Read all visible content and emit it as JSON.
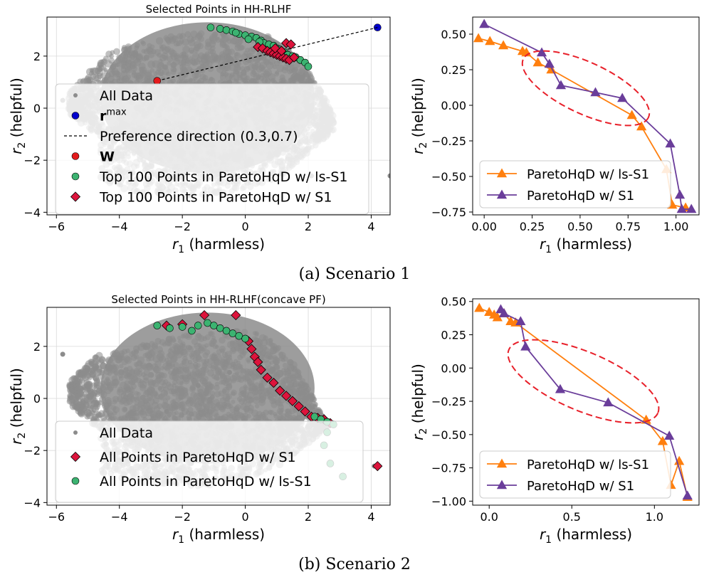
{
  "colors": {
    "gray_data": "#8c8c8c",
    "gray_edge": "#b0b0b0",
    "orange": "#ff7f0e",
    "purple": "#6a3d9a",
    "green": "#3cb371",
    "crimson": "#dc143c",
    "blue": "#0000cd",
    "red": "#e31a1c",
    "ellipse": "#e8202a"
  },
  "captions": [
    "(a) Scenario 1",
    "(b) Scenario 2"
  ],
  "chart_data": [
    {
      "id": "scatter1",
      "type": "scatter",
      "title": "Selected Points in HH-RLHF",
      "xlabel_sym": "r",
      "xlabel_sub": "1",
      "xlabel_rest": " (harmless)",
      "ylabel_sym": "r",
      "ylabel_sub": "2",
      "ylabel_rest": " (helpful)",
      "xlim": [
        -6.3,
        4.6
      ],
      "ylim": [
        -4.1,
        3.5
      ],
      "xticks": [
        -6,
        -4,
        -2,
        0,
        2,
        4
      ],
      "yticks": [
        -4,
        -2,
        0,
        2
      ],
      "grid": true,
      "background_cloud": {
        "label": "All Data",
        "center": [
          -1.4,
          0.5
        ],
        "extent": "approx. x -5.8 to 3, y -3.5 to 3"
      },
      "series": [
        {
          "name": "All Data",
          "marker": "circle-small",
          "color": "gray_data",
          "points": [
            [
              -1.5,
              0.5
            ],
            [
              -0.5,
              1
            ],
            [
              0.5,
              0.5
            ],
            [
              -2.5,
              -0.5
            ],
            [
              1.5,
              -1
            ],
            [
              2.1,
              -2.6
            ],
            [
              4.6,
              -2.6
            ],
            [
              -5.8,
              0.3
            ]
          ]
        },
        {
          "name": "r^max",
          "marker": "circle",
          "color": "blue",
          "points": [
            [
              4.2,
              3.1
            ]
          ]
        },
        {
          "name": "Preference direction (0.3,0.7)",
          "marker": "dashed-line",
          "color": "#000000",
          "points": [
            [
              -2.8,
              1.05
            ],
            [
              4.2,
              3.1
            ]
          ]
        },
        {
          "name": "W",
          "marker": "circle",
          "color": "red",
          "points": [
            [
              -2.8,
              1.05
            ]
          ]
        },
        {
          "name": "Top 100 Points in ParetoHqD w/ ls-S1",
          "marker": "circle",
          "color": "green",
          "points": [
            [
              -1.1,
              3.1
            ],
            [
              -0.8,
              3.05
            ],
            [
              -0.6,
              3.0
            ],
            [
              -0.4,
              2.95
            ],
            [
              -0.2,
              2.85
            ],
            [
              0.0,
              2.8
            ],
            [
              0.2,
              2.75
            ],
            [
              0.35,
              2.7
            ],
            [
              0.5,
              2.6
            ],
            [
              0.6,
              2.5
            ],
            [
              0.75,
              2.45
            ],
            [
              0.9,
              2.4
            ],
            [
              1.0,
              2.3
            ],
            [
              1.1,
              2.25
            ],
            [
              1.25,
              2.15
            ],
            [
              1.35,
              2.05
            ],
            [
              1.5,
              2.0
            ],
            [
              1.6,
              1.95
            ],
            [
              1.75,
              1.85
            ],
            [
              1.9,
              1.75
            ],
            [
              2.0,
              1.6
            ],
            [
              0.1,
              2.65
            ],
            [
              0.45,
              2.55
            ],
            [
              -0.3,
              2.9
            ]
          ]
        },
        {
          "name": "Top 100 Points in ParetoHqD w/ S1",
          "marker": "diamond",
          "color": "crimson",
          "points": [
            [
              0.4,
              2.35
            ],
            [
              0.55,
              2.3
            ],
            [
              0.7,
              2.2
            ],
            [
              0.8,
              2.15
            ],
            [
              0.9,
              2.1
            ],
            [
              1.0,
              2.05
            ],
            [
              1.1,
              2.0
            ],
            [
              1.2,
              1.95
            ],
            [
              1.3,
              1.9
            ],
            [
              1.4,
              1.85
            ],
            [
              1.3,
              2.5
            ],
            [
              1.45,
              2.45
            ],
            [
              0.95,
              2.3
            ],
            [
              1.15,
              2.2
            ],
            [
              1.55,
              1.95
            ]
          ]
        }
      ],
      "legend_position": "lower-left"
    },
    {
      "id": "line1",
      "type": "line",
      "xlabel_sym": "r",
      "xlabel_sub": "1",
      "xlabel_rest": " (harmless)",
      "ylabel_sym": "r",
      "ylabel_sub": "2",
      "ylabel_rest": " (helpful)",
      "xlim": [
        -0.06,
        1.12
      ],
      "ylim": [
        -0.77,
        0.62
      ],
      "xticks": [
        0.0,
        0.25,
        0.5,
        0.75,
        1.0
      ],
      "yticks": [
        -0.75,
        -0.5,
        -0.25,
        0.0,
        0.25,
        0.5
      ],
      "xtick_labels": [
        "0.00",
        "0.25",
        "0.50",
        "0.75",
        "1.00"
      ],
      "ytick_labels": [
        "−0.75",
        "−0.50",
        "−0.25",
        "0.00",
        "0.25",
        "0.50"
      ],
      "grid": false,
      "series": [
        {
          "name": "ParetoHqD w/ ls-S1",
          "color": "orange",
          "x": [
            -0.03,
            0.03,
            0.1,
            0.2,
            0.22,
            0.28,
            0.35,
            0.77,
            0.82,
            0.95,
            0.98,
            1.05
          ],
          "y": [
            0.47,
            0.45,
            0.42,
            0.38,
            0.37,
            0.3,
            0.25,
            -0.07,
            -0.15,
            -0.45,
            -0.7,
            -0.72
          ]
        },
        {
          "name": "ParetoHqD w/ S1",
          "color": "purple",
          "x": [
            0.0,
            0.3,
            0.34,
            0.4,
            0.58,
            0.72,
            0.97,
            1.02,
            1.03,
            1.08
          ],
          "y": [
            0.57,
            0.37,
            0.29,
            0.14,
            0.09,
            0.05,
            -0.27,
            -0.63,
            -0.73,
            -0.73
          ]
        }
      ],
      "ellipse": {
        "cx": 0.53,
        "cy": 0.12,
        "rx": 0.36,
        "ry": 0.18,
        "rotation_deg": 25
      },
      "legend_position": "lower-left"
    },
    {
      "id": "scatter2",
      "type": "scatter",
      "title": "Selected Points in HH-RLHF(concave PF)",
      "xlabel_sym": "r",
      "xlabel_sub": "1",
      "xlabel_rest": " (harmless)",
      "ylabel_sym": "r",
      "ylabel_sub": "2",
      "ylabel_rest": " (helpful)",
      "xlim": [
        -6.3,
        4.6
      ],
      "ylim": [
        -4.1,
        3.5
      ],
      "xticks": [
        -6,
        -4,
        -2,
        0,
        2,
        4
      ],
      "yticks": [
        -4,
        -2,
        0,
        2
      ],
      "grid": true,
      "background_cloud": {
        "label": "All Data",
        "center": [
          -1.4,
          0.5
        ],
        "extent": "approx. x -5.8 to 3, y -3.5 to 3"
      },
      "series": [
        {
          "name": "All Data",
          "marker": "circle-small",
          "color": "gray_data",
          "points": [
            [
              -1.5,
              0.5
            ],
            [
              -0.5,
              1
            ],
            [
              0.5,
              0.5
            ],
            [
              -2.5,
              -0.5
            ],
            [
              1.5,
              -1
            ],
            [
              -5.8,
              1.7
            ],
            [
              4.1,
              -2.6
            ]
          ]
        },
        {
          "name": "All Points in ParetoHqD w/ S1",
          "marker": "diamond",
          "color": "crimson",
          "points": [
            [
              -2.5,
              2.8
            ],
            [
              -2.0,
              2.85
            ],
            [
              -1.3,
              3.2
            ],
            [
              -0.3,
              3.2
            ],
            [
              0.1,
              2.2
            ],
            [
              0.2,
              1.9
            ],
            [
              0.3,
              1.6
            ],
            [
              0.4,
              1.4
            ],
            [
              0.5,
              1.1
            ],
            [
              0.7,
              0.8
            ],
            [
              0.9,
              0.6
            ],
            [
              1.1,
              0.3
            ],
            [
              1.3,
              0.1
            ],
            [
              1.5,
              -0.1
            ],
            [
              1.7,
              -0.3
            ],
            [
              1.9,
              -0.5
            ],
            [
              2.1,
              -0.7
            ],
            [
              2.3,
              -0.75
            ],
            [
              2.5,
              -0.8
            ],
            [
              2.7,
              -0.95
            ],
            [
              4.2,
              -2.6
            ]
          ]
        },
        {
          "name": "All Points in ParetoHqD w/ ls-S1",
          "marker": "circle",
          "color": "green",
          "points": [
            [
              -2.8,
              2.8
            ],
            [
              -2.4,
              2.7
            ],
            [
              -2.0,
              2.75
            ],
            [
              -1.7,
              2.6
            ],
            [
              -1.5,
              2.8
            ],
            [
              -1.2,
              2.9
            ],
            [
              -1.0,
              2.8
            ],
            [
              -0.8,
              2.7
            ],
            [
              -0.6,
              2.6
            ],
            [
              -0.4,
              2.5
            ],
            [
              -0.2,
              2.4
            ],
            [
              0.0,
              2.3
            ],
            [
              2.2,
              -0.7
            ],
            [
              2.4,
              -0.8
            ],
            [
              2.6,
              -0.9
            ],
            [
              2.8,
              -1.0
            ],
            [
              2.5,
              -1.8
            ],
            [
              2.7,
              -2.5
            ],
            [
              3.1,
              -3.0
            ],
            [
              2.6,
              -1.3
            ]
          ]
        }
      ],
      "legend_position": "lower-left"
    },
    {
      "id": "line2",
      "type": "line",
      "xlabel_sym": "r",
      "xlabel_sub": "1",
      "xlabel_rest": " (harmless)",
      "ylabel_sym": "r",
      "ylabel_sub": "2",
      "ylabel_rest": " (helpful)",
      "xlim": [
        -0.1,
        1.27
      ],
      "ylim": [
        -1.03,
        0.52
      ],
      "xticks": [
        0.0,
        0.5,
        1.0
      ],
      "yticks": [
        -1.0,
        -0.75,
        -0.5,
        -0.25,
        0.0,
        0.25,
        0.5
      ],
      "xtick_labels": [
        "0.0",
        "0.5",
        "1.0"
      ],
      "ytick_labels": [
        "−1.00",
        "−0.75",
        "−0.50",
        "−0.25",
        "0.00",
        "0.25",
        "0.50"
      ],
      "grid": false,
      "series": [
        {
          "name": "ParetoHqD w/ ls-S1",
          "color": "orange",
          "x": [
            -0.06,
            0.0,
            0.03,
            0.05,
            0.09,
            0.13,
            0.16,
            0.95,
            1.05,
            1.1,
            1.15,
            1.2
          ],
          "y": [
            0.45,
            0.42,
            0.4,
            0.38,
            0.41,
            0.35,
            0.34,
            -0.39,
            -0.55,
            -0.88,
            -0.7,
            -0.97
          ]
        },
        {
          "name": "ParetoHqD w/ S1",
          "color": "purple",
          "x": [
            0.07,
            0.09,
            0.19,
            0.22,
            0.43,
            0.72,
            1.09,
            1.2
          ],
          "y": [
            0.44,
            0.41,
            0.35,
            0.16,
            -0.16,
            -0.26,
            -0.51,
            -0.96
          ]
        }
      ],
      "ellipse": {
        "cx": 0.57,
        "cy": -0.1,
        "rx": 0.49,
        "ry": 0.22,
        "rotation_deg": 23
      },
      "legend_position": "lower-left"
    }
  ]
}
